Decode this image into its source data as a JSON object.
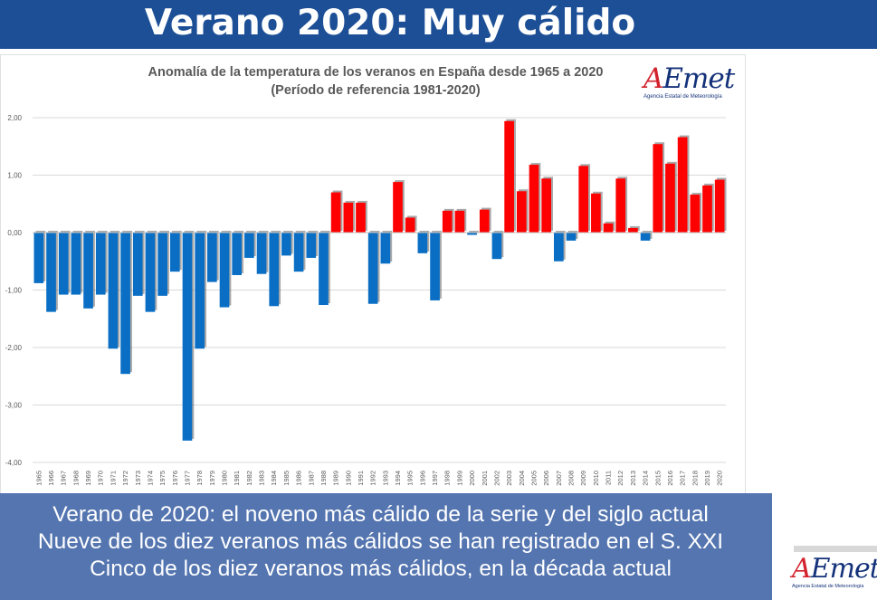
{
  "header": {
    "title": "Verano 2020: Muy cálido"
  },
  "chart": {
    "title_line1": "Anomalía de la temperatura de los veranos en España desde 1965 a 2020",
    "title_line2": "(Período de referencia 1981-2020)"
  },
  "logo": {
    "word": "AEmet",
    "subtitle": "Agencia Estatal de Meteorología"
  },
  "caption": {
    "line1": "Verano de 2020: el noveno más cálido de la serie y del siglo actual",
    "line2": "Nueve de los diez veranos más cálidos se han registrado en el S. XXI",
    "line3": "Cinco de los diez veranos más cálidos, en la década actual"
  },
  "colors": {
    "positive": "#ff0000",
    "negative": "#0a6fc4",
    "banner": "#1c4f96",
    "caption_bg": "#5475b0"
  },
  "chart_data": {
    "type": "bar",
    "title": "Anomalía de la temperatura de los veranos en España desde 1965 a 2020",
    "subtitle": "(Período de referencia 1981-2020)",
    "xlabel": "",
    "ylabel": "",
    "ylim": [
      -4.0,
      2.0
    ],
    "yticks": [
      -4.0,
      -3.0,
      -2.0,
      -1.0,
      0.0,
      1.0,
      2.0
    ],
    "ytick_labels": [
      "-4,00",
      "-3,00",
      "-2,00",
      "-1,00",
      "0,00",
      "1,00",
      "2,00"
    ],
    "grid": true,
    "categories": [
      "1965",
      "1966",
      "1967",
      "1968",
      "1969",
      "1970",
      "1971",
      "1972",
      "1973",
      "1974",
      "1975",
      "1976",
      "1977",
      "1978",
      "1979",
      "1980",
      "1981",
      "1982",
      "1983",
      "1984",
      "1985",
      "1986",
      "1987",
      "1988",
      "1989",
      "1990",
      "1991",
      "1992",
      "1993",
      "1994",
      "1995",
      "1996",
      "1997",
      "1998",
      "1999",
      "2000",
      "2001",
      "2002",
      "2003",
      "2004",
      "2005",
      "2006",
      "2007",
      "2008",
      "2009",
      "2010",
      "2011",
      "2012",
      "2013",
      "2014",
      "2015",
      "2016",
      "2017",
      "2018",
      "2019",
      "2020"
    ],
    "values": [
      -0.88,
      -1.38,
      -1.08,
      -1.08,
      -1.32,
      -1.08,
      -2.02,
      -2.46,
      -1.1,
      -1.38,
      -1.1,
      -0.68,
      -3.62,
      -2.02,
      -0.86,
      -1.3,
      -0.74,
      -0.44,
      -0.72,
      -1.28,
      -0.4,
      -0.68,
      -0.44,
      -1.26,
      0.7,
      0.52,
      0.52,
      -1.24,
      -0.54,
      0.88,
      0.26,
      -0.36,
      -1.18,
      0.38,
      0.38,
      -0.04,
      0.4,
      -0.46,
      1.94,
      0.72,
      1.18,
      0.94,
      -0.5,
      -0.14,
      1.16,
      0.68,
      0.16,
      0.94,
      0.08,
      -0.14,
      1.54,
      1.2,
      1.66,
      0.66,
      0.82,
      0.92
    ]
  }
}
